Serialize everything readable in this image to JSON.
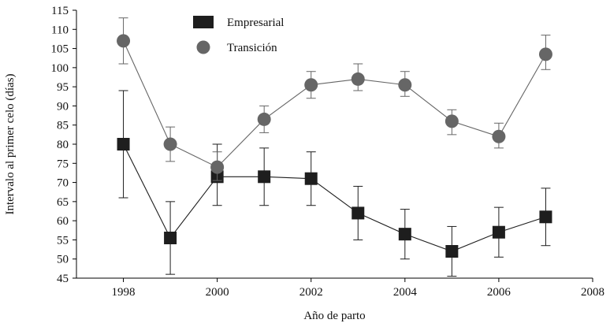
{
  "chart_data": {
    "type": "line",
    "xlabel": "Año de parto",
    "ylabel": "Intervalo al primer celo (días)",
    "xlim": [
      1997,
      2008
    ],
    "ylim": [
      45,
      115
    ],
    "x_ticks": [
      1998,
      2000,
      2002,
      2004,
      2006,
      2008
    ],
    "y_ticks": [
      45,
      50,
      55,
      60,
      65,
      70,
      75,
      80,
      85,
      90,
      95,
      100,
      105,
      110,
      115
    ],
    "grid": false,
    "legend_position": "top-center",
    "series": [
      {
        "name": "Empresarial",
        "marker": "square",
        "color": "#1e1e1e",
        "x": [
          1998,
          1999,
          2000,
          2001,
          2002,
          2003,
          2004,
          2005,
          2006,
          2007
        ],
        "y": [
          80,
          55.5,
          71.5,
          71.5,
          71,
          62,
          56.5,
          52,
          57,
          61
        ],
        "err_low": [
          66,
          46,
          64,
          64,
          64,
          55,
          50,
          45.5,
          50.5,
          53.5
        ],
        "err_high": [
          94,
          65,
          80,
          79,
          78,
          69,
          63,
          58.5,
          63.5,
          68.5
        ]
      },
      {
        "name": "Transición",
        "marker": "circle",
        "color": "#666666",
        "x": [
          1998,
          1999,
          2000,
          2001,
          2002,
          2003,
          2004,
          2005,
          2006,
          2007
        ],
        "y": [
          107,
          80,
          74,
          86.5,
          95.5,
          97,
          95.5,
          86,
          82,
          103.5
        ],
        "err_low": [
          101,
          75.5,
          70.5,
          83,
          92,
          94,
          92.5,
          82.5,
          79,
          99.5
        ],
        "err_high": [
          113,
          84.5,
          78,
          90,
          99,
          101,
          99,
          89,
          85.5,
          108.5
        ]
      }
    ]
  }
}
